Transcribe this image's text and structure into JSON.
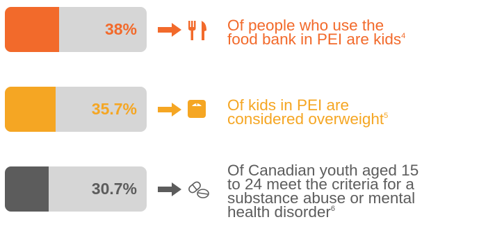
{
  "colors": {
    "orange": "#f26a2b",
    "amber": "#f5a623",
    "dark": "#5c5c5c",
    "bar_bg": "#d6d6d6"
  },
  "stats": [
    {
      "value": "38%",
      "fill_percent": 38,
      "color": "#f26a2b",
      "icon": "fork-knife-icon",
      "lines": [
        "Of people who use the",
        "food bank in PEI are kids"
      ],
      "footnote": "4"
    },
    {
      "value": "35.7%",
      "fill_percent": 35.7,
      "color": "#f5a623",
      "icon": "scale-icon",
      "lines": [
        "Of kids in PEI are",
        "considered overweight"
      ],
      "footnote": "5"
    },
    {
      "value": "30.7%",
      "fill_percent": 30.7,
      "color": "#5c5c5c",
      "icon": "pills-icon",
      "lines": [
        "Of Canadian youth aged 15",
        "to 24 meet the criteria for a",
        "substance abuse or mental",
        "health disorder"
      ],
      "footnote": "6"
    }
  ]
}
